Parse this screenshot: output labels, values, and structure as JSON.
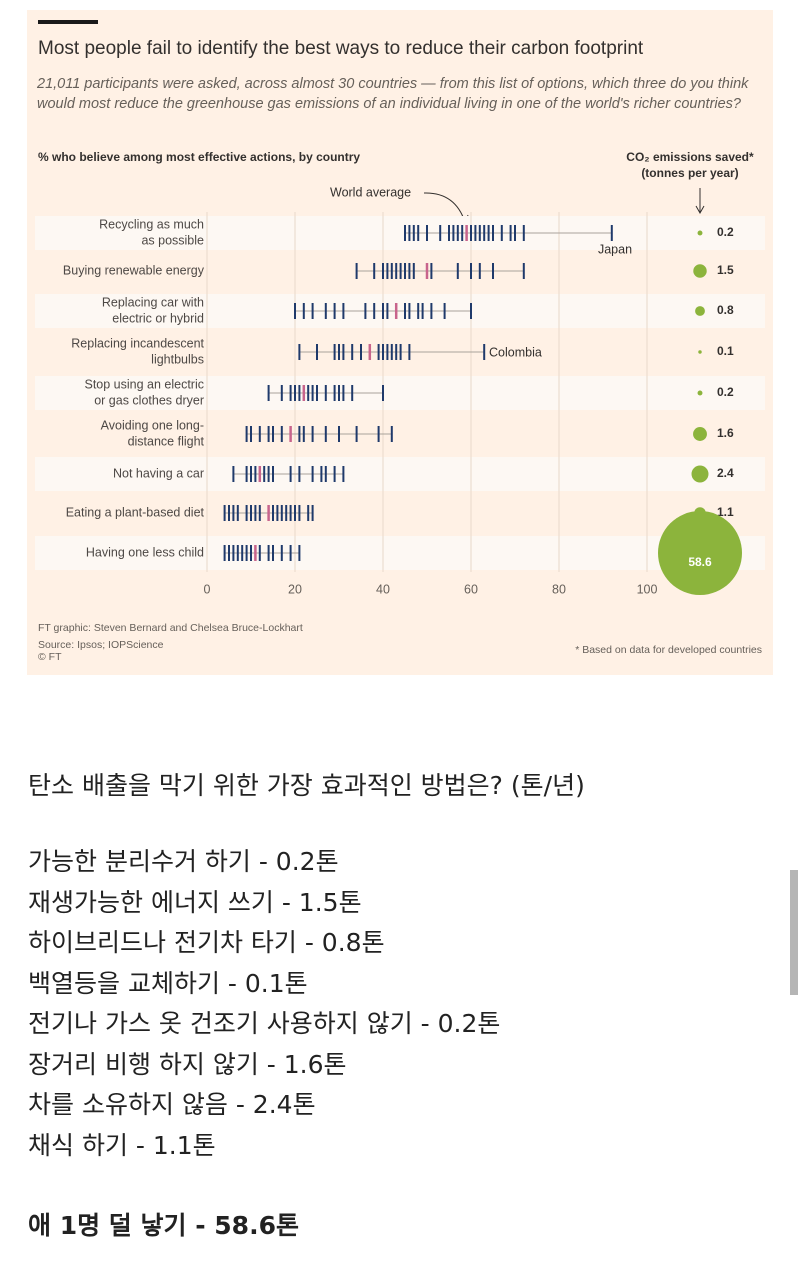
{
  "chart_data": {
    "type": "strip",
    "title": "Most people fail to identify the best ways to reduce their carbon footprint",
    "subtitle": "21,011 participants were asked, across almost 30 countries — from this list of options, which three do you think would most reduce the greenhouse gas emissions of an individual living in one of the world's richer countries?",
    "x_header": "% who believe among most effective actions, by country",
    "emissions_header": [
      "CO₂ emissions saved*",
      "(tonnes per year)"
    ],
    "annotations": {
      "world_average": "World average",
      "japan": "Japan",
      "colombia": "Colombia"
    },
    "xlim": [
      0,
      100
    ],
    "xticks": [
      0,
      20,
      40,
      60,
      80,
      100
    ],
    "grid": true,
    "tick_color": "#1f3a6b",
    "average_color": "#c8648c",
    "bubble_color": "#8cb43c",
    "rows": [
      {
        "label": [
          "Recycling as much",
          "as possible"
        ],
        "values": [
          45,
          46,
          47,
          48,
          50,
          53,
          55,
          56,
          57,
          58,
          60,
          61,
          62,
          63,
          64,
          65,
          67,
          69,
          70,
          72,
          92
        ],
        "world_average": 59,
        "emissions": 0.2
      },
      {
        "label": [
          "Buying renewable energy"
        ],
        "values": [
          34,
          38,
          40,
          41,
          42,
          43,
          44,
          45,
          46,
          47,
          51,
          57,
          60,
          62,
          65,
          72
        ],
        "world_average": 50,
        "emissions": 1.5
      },
      {
        "label": [
          "Replacing car with",
          "electric or hybrid"
        ],
        "values": [
          20,
          22,
          24,
          27,
          29,
          31,
          36,
          38,
          40,
          41,
          45,
          46,
          48,
          49,
          51,
          54,
          60
        ],
        "world_average": 43,
        "emissions": 0.8
      },
      {
        "label": [
          "Replacing incandescent",
          "lightbulbs"
        ],
        "values": [
          21,
          25,
          29,
          30,
          31,
          33,
          35,
          39,
          40,
          41,
          42,
          43,
          44,
          46,
          63
        ],
        "world_average": 37,
        "emissions": 0.1
      },
      {
        "label": [
          "Stop using an electric",
          "or gas clothes dryer"
        ],
        "values": [
          14,
          17,
          19,
          20,
          21,
          23,
          24,
          25,
          27,
          29,
          30,
          31,
          33,
          40
        ],
        "world_average": 22,
        "emissions": 0.2
      },
      {
        "label": [
          "Avoiding one long-",
          "distance flight"
        ],
        "values": [
          9,
          10,
          12,
          14,
          15,
          17,
          21,
          22,
          24,
          27,
          30,
          34,
          39,
          42
        ],
        "world_average": 19,
        "emissions": 1.6
      },
      {
        "label": [
          "Not having a car"
        ],
        "values": [
          6,
          9,
          10,
          11,
          13,
          14,
          15,
          19,
          21,
          24,
          26,
          27,
          29,
          31
        ],
        "world_average": 12,
        "emissions": 2.4
      },
      {
        "label": [
          "Eating a plant-based diet"
        ],
        "values": [
          4,
          5,
          6,
          7,
          9,
          10,
          11,
          12,
          15,
          16,
          17,
          18,
          19,
          20,
          21,
          23,
          24
        ],
        "world_average": 14,
        "emissions": 1.1
      },
      {
        "label": [
          "Having one less child"
        ],
        "values": [
          4,
          5,
          6,
          7,
          8,
          9,
          10,
          12,
          14,
          15,
          17,
          19,
          21
        ],
        "world_average": 11,
        "emissions": 58.6
      }
    ],
    "footer": [
      "FT graphic: Steven Bernard and Chelsea Bruce-Lockhart",
      "Source: Ipsos; IOPScience",
      "© FT"
    ],
    "footnote": "* Based on data for developed countries"
  },
  "post": {
    "heading": "탄소 배출을 막기 위한 가장 효과적인 방법은? (톤/년)",
    "items": [
      "가능한 분리수거 하기 - 0.2톤",
      "재생가능한 에너지 쓰기 - 1.5톤",
      "하이브리드나 전기차 타기 - 0.8톤",
      "백열등을 교체하기 - 0.1톤",
      "전기나 가스 옷 건조기 사용하지 않기 - 0.2톤",
      "장거리 비행 하지 않기 - 1.6톤",
      "차를 소유하지 않음 - 2.4톤",
      "채식 하기 - 1.1톤"
    ],
    "highlight": "애 1명 덜 낳기 - 58.6톤"
  }
}
